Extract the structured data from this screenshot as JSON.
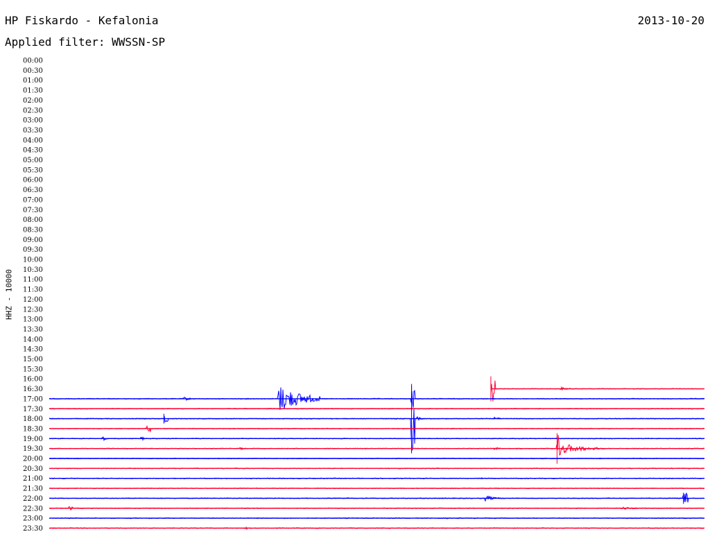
{
  "header": {
    "title": "HP Fiskardo - Kefalonia",
    "subtitle": "Applied filter: WWSSN-SP",
    "date": "2013-10-20",
    "station_label": "HHZ - 10000"
  },
  "colors": {
    "blue_trace": "#0000ff",
    "red_trace": "#ff0033",
    "text": "#000000"
  },
  "chart_data": {
    "type": "line",
    "title": "HP Fiskardo - Kefalonia",
    "subtitle": "Applied filter: WWSSN-SP",
    "ylabel": "HHZ - 10000",
    "y_tick_labels": [
      "00:00",
      "00:30",
      "01:00",
      "01:30",
      "02:00",
      "02:30",
      "03:00",
      "03:30",
      "04:00",
      "04:30",
      "05:00",
      "05:30",
      "06:00",
      "06:30",
      "07:00",
      "07:30",
      "08:00",
      "08:30",
      "09:00",
      "09:30",
      "10:00",
      "10:30",
      "11:00",
      "11:30",
      "12:00",
      "12:30",
      "13:00",
      "13:30",
      "14:00",
      "14:30",
      "15:00",
      "15:30",
      "16:00",
      "16:30",
      "17:00",
      "17:30",
      "18:00",
      "18:30",
      "19:00",
      "19:30",
      "20:00",
      "20:30",
      "21:00",
      "21:30",
      "22:00",
      "22:30",
      "23:00",
      "23:30"
    ],
    "traces": [
      {
        "row": "16:30",
        "start_fraction": 0.674,
        "color": "red",
        "events": [
          {
            "at": 0.674,
            "amp": 18,
            "dur": 0.004
          },
          {
            "at": 0.78,
            "amp": 3,
            "dur": 0.02
          }
        ]
      },
      {
        "row": "17:00",
        "start_fraction": 0.0,
        "color": "blue",
        "events": [
          {
            "at": 0.205,
            "amp": 3,
            "dur": 0.02
          },
          {
            "at": 0.35,
            "amp": 20,
            "dur": 0.06
          },
          {
            "at": 0.553,
            "amp": 18,
            "dur": 0.002
          }
        ]
      },
      {
        "row": "17:30",
        "start_fraction": 0.0,
        "color": "red",
        "events": []
      },
      {
        "row": "18:00",
        "start_fraction": 0.0,
        "color": "blue",
        "events": [
          {
            "at": 0.175,
            "amp": 7,
            "dur": 0.004
          },
          {
            "at": 0.553,
            "amp": 50,
            "dur": 0.002
          },
          {
            "at": 0.555,
            "amp": 7,
            "dur": 0.012
          },
          {
            "at": 0.68,
            "amp": 2,
            "dur": 0.02
          }
        ]
      },
      {
        "row": "18:30",
        "start_fraction": 0.0,
        "color": "red",
        "events": [
          {
            "at": 0.148,
            "amp": 4,
            "dur": 0.004
          }
        ]
      },
      {
        "row": "19:00",
        "start_fraction": 0.0,
        "color": "blue",
        "events": [
          {
            "at": 0.08,
            "amp": 3,
            "dur": 0.003
          },
          {
            "at": 0.14,
            "amp": 2,
            "dur": 0.003
          }
        ]
      },
      {
        "row": "19:30",
        "start_fraction": 0.0,
        "color": "red",
        "events": [
          {
            "at": 0.29,
            "amp": 2,
            "dur": 0.02
          },
          {
            "at": 0.68,
            "amp": 3,
            "dur": 0.01
          },
          {
            "at": 0.775,
            "amp": 22,
            "dur": 0.003
          },
          {
            "at": 0.78,
            "amp": 8,
            "dur": 0.06
          }
        ]
      },
      {
        "row": "20:00",
        "start_fraction": 0.0,
        "color": "blue",
        "events": []
      },
      {
        "row": "20:30",
        "start_fraction": 0.0,
        "color": "red",
        "events": []
      },
      {
        "row": "21:00",
        "start_fraction": 0.0,
        "color": "blue",
        "events": [
          {
            "at": 0.66,
            "amp": 1,
            "dur": 0.01
          }
        ]
      },
      {
        "row": "21:30",
        "start_fraction": 0.0,
        "color": "red",
        "events": []
      },
      {
        "row": "22:00",
        "start_fraction": 0.0,
        "color": "blue",
        "events": [
          {
            "at": 0.665,
            "amp": 4,
            "dur": 0.025
          },
          {
            "at": 0.968,
            "amp": 8,
            "dur": 0.004
          }
        ]
      },
      {
        "row": "22:30",
        "start_fraction": 0.0,
        "color": "red",
        "events": [
          {
            "at": 0.03,
            "amp": 3,
            "dur": 0.004
          },
          {
            "at": 0.875,
            "amp": 2,
            "dur": 0.04
          }
        ]
      },
      {
        "row": "23:00",
        "start_fraction": 0.0,
        "color": "blue",
        "events": []
      },
      {
        "row": "23:30",
        "start_fraction": 0.0,
        "color": "red",
        "events": [
          {
            "at": 0.3,
            "amp": 2,
            "dur": 0.01
          }
        ]
      }
    ],
    "grid": false,
    "legend": "none"
  }
}
